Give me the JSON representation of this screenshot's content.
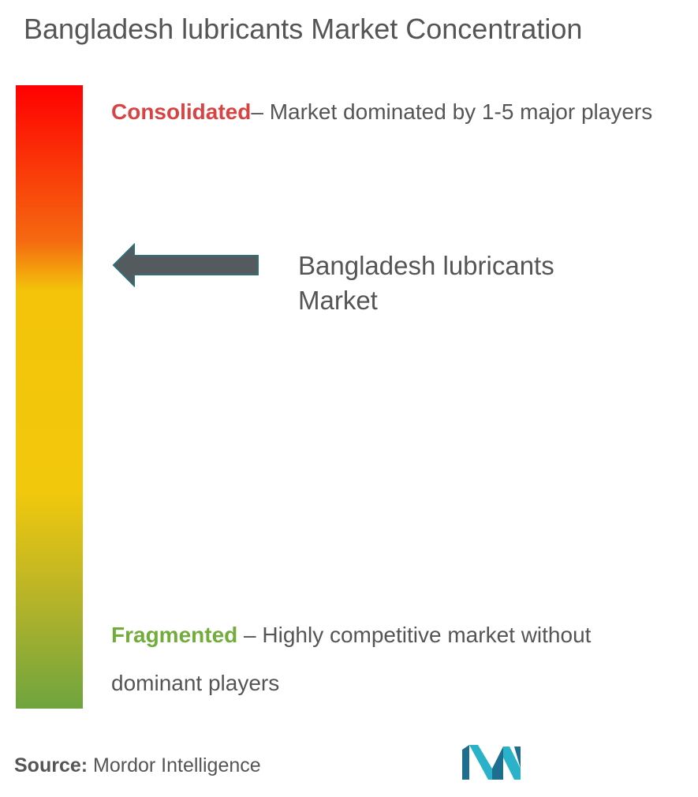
{
  "title": "Bangladesh lubricants Market Concentration",
  "consolidated": {
    "label": "Consolidated",
    "description": "– Market dominated by 1-5 major players",
    "color": "#d94343"
  },
  "fragmented": {
    "label": "Fragmented",
    "description": " – Highly competitive market without dominant players",
    "color": "#72ad3c"
  },
  "market": {
    "label": "Bangladesh lubricants Market",
    "concentration_level": 0.29
  },
  "source": {
    "label": "Source:",
    "value": " Mordor Intelligence"
  },
  "gradient_colors": [
    "#ff0000",
    "#f56a10",
    "#f3c40a",
    "#f2c80c",
    "#b8b428",
    "#6ea43f"
  ],
  "icons": {
    "arrow": "left-arrow-icon",
    "logo": "mordor-intelligence-logo"
  }
}
